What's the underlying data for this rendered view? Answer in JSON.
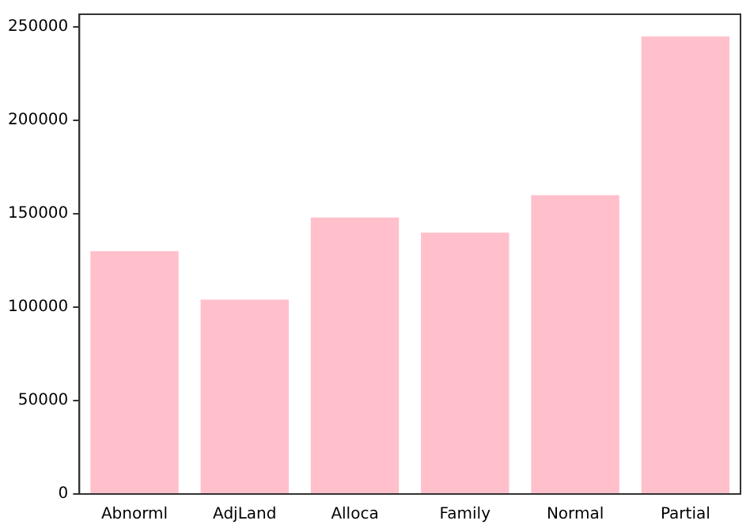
{
  "chart_data": {
    "type": "bar",
    "categories": [
      "Abnorml",
      "AdjLand",
      "Alloca",
      "Family",
      "Normal",
      "Partial"
    ],
    "values": [
      130000,
      104000,
      148000,
      140000,
      160000,
      245000
    ],
    "color": "#ffc0cb",
    "ylim": [
      0,
      256830
    ],
    "yticks": [
      0,
      50000,
      100000,
      150000,
      200000,
      250000
    ],
    "grid": false,
    "legend": false
  }
}
